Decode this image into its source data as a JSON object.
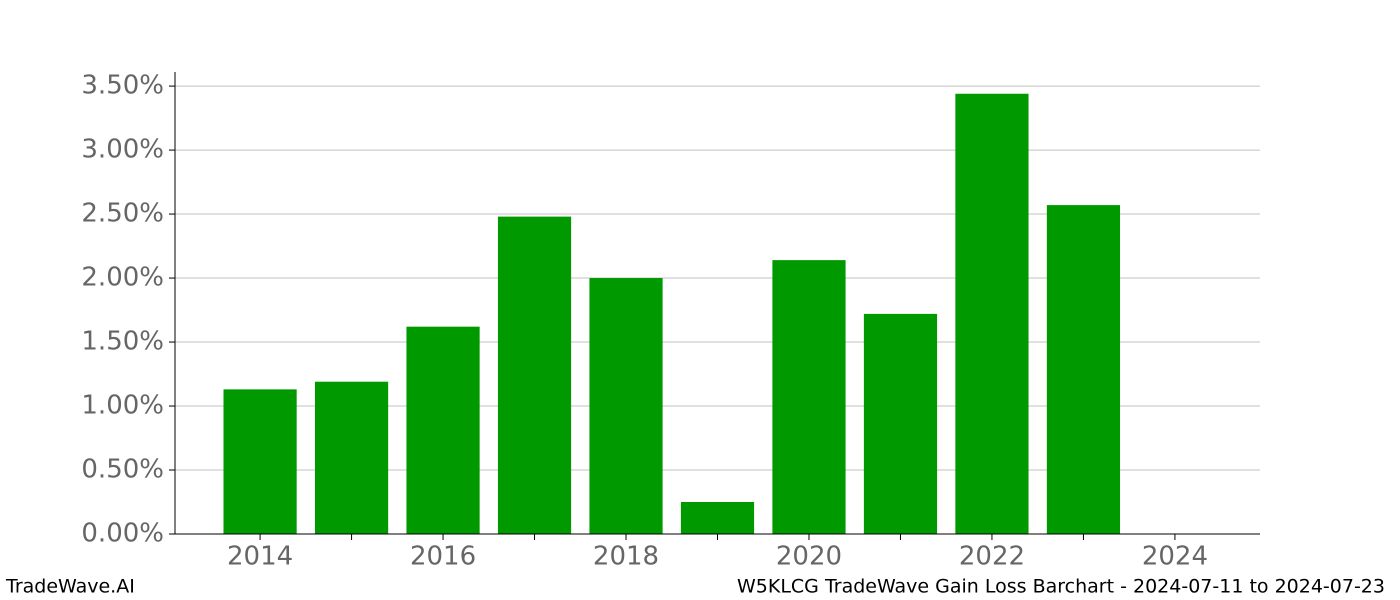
{
  "chart_data": {
    "type": "bar",
    "title": "W5KLCG TradeWave Gain Loss Barchart - 2024-07-11 to 2024-07-23",
    "watermark": "TradeWave.AI",
    "x": [
      2014,
      2015,
      2016,
      2017,
      2018,
      2019,
      2020,
      2021,
      2022,
      2023
    ],
    "values": [
      1.13,
      1.19,
      1.62,
      2.48,
      2.0,
      0.25,
      2.14,
      1.72,
      3.44,
      2.57
    ],
    "color": "#009900",
    "xlim": [
      2013.07,
      2024.93
    ],
    "xticks": [
      2014,
      2016,
      2018,
      2020,
      2022,
      2024
    ],
    "xminorticks": [
      2015,
      2017,
      2019,
      2021,
      2023
    ],
    "ylim": [
      0,
      3.61
    ],
    "yticks": [
      {
        "value": 0,
        "label": "0.00%"
      },
      {
        "value": 0.5,
        "label": "0.50%"
      },
      {
        "value": 1.0,
        "label": "1.00%"
      },
      {
        "value": 1.5,
        "label": "1.50%"
      },
      {
        "value": 2.0,
        "label": "2.00%"
      },
      {
        "value": 2.5,
        "label": "2.50%"
      },
      {
        "value": 3.0,
        "label": "3.00%"
      },
      {
        "value": 3.5,
        "label": "3.50%"
      }
    ],
    "grid": true
  }
}
